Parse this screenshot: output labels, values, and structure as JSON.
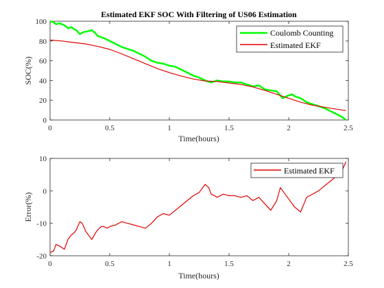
{
  "chart_data": [
    {
      "type": "line",
      "title": "Estimated EKF SOC With Filtering of US06 Estimation",
      "xlabel": "Time(hours)",
      "ylabel": "SOC(%)",
      "xlim": [
        0,
        2.5
      ],
      "ylim": [
        0,
        100
      ],
      "xticks": [
        0,
        0.5,
        1,
        1.5,
        2,
        2.5
      ],
      "xtick_labels": [
        "0",
        "0.5",
        "1",
        "1.5",
        "2",
        "2.5"
      ],
      "yticks": [
        0,
        20,
        40,
        60,
        80,
        100
      ],
      "ytick_labels": [
        "0",
        "20",
        "40",
        "60",
        "80",
        "100"
      ],
      "grid": false,
      "legend_position": "top-right",
      "series": [
        {
          "name": "Coulomb Counting",
          "color": "#00ff00",
          "x": [
            0,
            0.03,
            0.05,
            0.08,
            0.12,
            0.15,
            0.18,
            0.2,
            0.22,
            0.25,
            0.28,
            0.32,
            0.35,
            0.38,
            0.4,
            0.45,
            0.5,
            0.55,
            0.6,
            0.65,
            0.7,
            0.75,
            0.8,
            0.85,
            0.9,
            0.95,
            1.0,
            1.05,
            1.1,
            1.15,
            1.2,
            1.25,
            1.3,
            1.35,
            1.4,
            1.45,
            1.5,
            1.55,
            1.6,
            1.65,
            1.7,
            1.75,
            1.8,
            1.85,
            1.9,
            1.95,
            2.0,
            2.03,
            2.05,
            2.1,
            2.15,
            2.2,
            2.25,
            2.3,
            2.35,
            2.4,
            2.45,
            2.48
          ],
          "values": [
            100,
            99,
            97,
            98,
            96,
            93,
            94,
            92,
            91,
            87,
            89,
            90,
            91,
            88,
            85,
            83,
            80,
            77,
            74,
            72,
            70,
            67,
            64,
            60,
            58,
            57,
            55,
            54,
            51,
            48,
            45,
            43,
            40,
            38,
            40,
            39,
            39,
            38,
            38,
            36,
            34,
            35,
            31,
            30,
            29,
            22,
            25,
            26,
            24,
            22,
            18,
            16,
            14,
            12,
            9,
            6,
            3,
            0
          ]
        },
        {
          "name": "Estimated EKF",
          "color": "#e00000",
          "x": [
            0,
            0.1,
            0.2,
            0.3,
            0.4,
            0.5,
            0.6,
            0.7,
            0.8,
            0.9,
            1.0,
            1.1,
            1.2,
            1.3,
            1.4,
            1.5,
            1.6,
            1.7,
            1.8,
            1.9,
            2.0,
            2.1,
            2.2,
            2.3,
            2.4,
            2.48
          ],
          "values": [
            81,
            80,
            78.5,
            77,
            74.5,
            71.5,
            67,
            62,
            57,
            52,
            48,
            44.5,
            41.5,
            39.5,
            39,
            37.5,
            36,
            33.5,
            30,
            26,
            22,
            18,
            15,
            13,
            11,
            9.5
          ]
        }
      ]
    },
    {
      "type": "line",
      "title": "",
      "xlabel": "Time(hours)",
      "ylabel": "Error(%)",
      "xlim": [
        0,
        2.5
      ],
      "ylim": [
        -20,
        10
      ],
      "xticks": [
        0,
        0.5,
        1,
        1.5,
        2,
        2.5
      ],
      "xtick_labels": [
        "0",
        "0.5",
        "1",
        "1.5",
        "2",
        "2.5"
      ],
      "yticks": [
        -20,
        -10,
        0,
        10
      ],
      "ytick_labels": [
        "-20",
        "-10",
        "0",
        "10"
      ],
      "grid": false,
      "legend_position": "top-right",
      "series": [
        {
          "name": "Estimated EKF",
          "color": "#e00000",
          "x": [
            0,
            0.03,
            0.05,
            0.08,
            0.12,
            0.15,
            0.18,
            0.2,
            0.22,
            0.25,
            0.27,
            0.3,
            0.33,
            0.35,
            0.38,
            0.4,
            0.43,
            0.45,
            0.48,
            0.5,
            0.55,
            0.6,
            0.65,
            0.7,
            0.75,
            0.8,
            0.85,
            0.9,
            0.95,
            1.0,
            1.05,
            1.1,
            1.15,
            1.2,
            1.25,
            1.3,
            1.33,
            1.35,
            1.38,
            1.4,
            1.45,
            1.5,
            1.55,
            1.6,
            1.65,
            1.7,
            1.75,
            1.8,
            1.85,
            1.9,
            1.93,
            1.95,
            2.0,
            2.05,
            2.1,
            2.15,
            2.2,
            2.25,
            2.3,
            2.35,
            2.4,
            2.45,
            2.48
          ],
          "values": [
            -19,
            -18.5,
            -16.5,
            -17,
            -18,
            -15,
            -13.5,
            -13,
            -12,
            -9.5,
            -10,
            -12.5,
            -14,
            -15,
            -13,
            -12,
            -11,
            -11,
            -11.5,
            -11,
            -10.5,
            -9.5,
            -10,
            -10.5,
            -11,
            -11.5,
            -10,
            -8,
            -7,
            -7.5,
            -6,
            -4.5,
            -3,
            -1.5,
            -0.5,
            2,
            1,
            -1,
            -1.5,
            -2,
            -1,
            -1.5,
            -1.5,
            -2,
            -1.5,
            -3,
            -2,
            -4,
            -6,
            -3,
            1,
            0,
            -2.5,
            -5,
            -6.5,
            -2,
            -1,
            0,
            1.5,
            3,
            4.5,
            6.5,
            9
          ]
        }
      ]
    }
  ]
}
